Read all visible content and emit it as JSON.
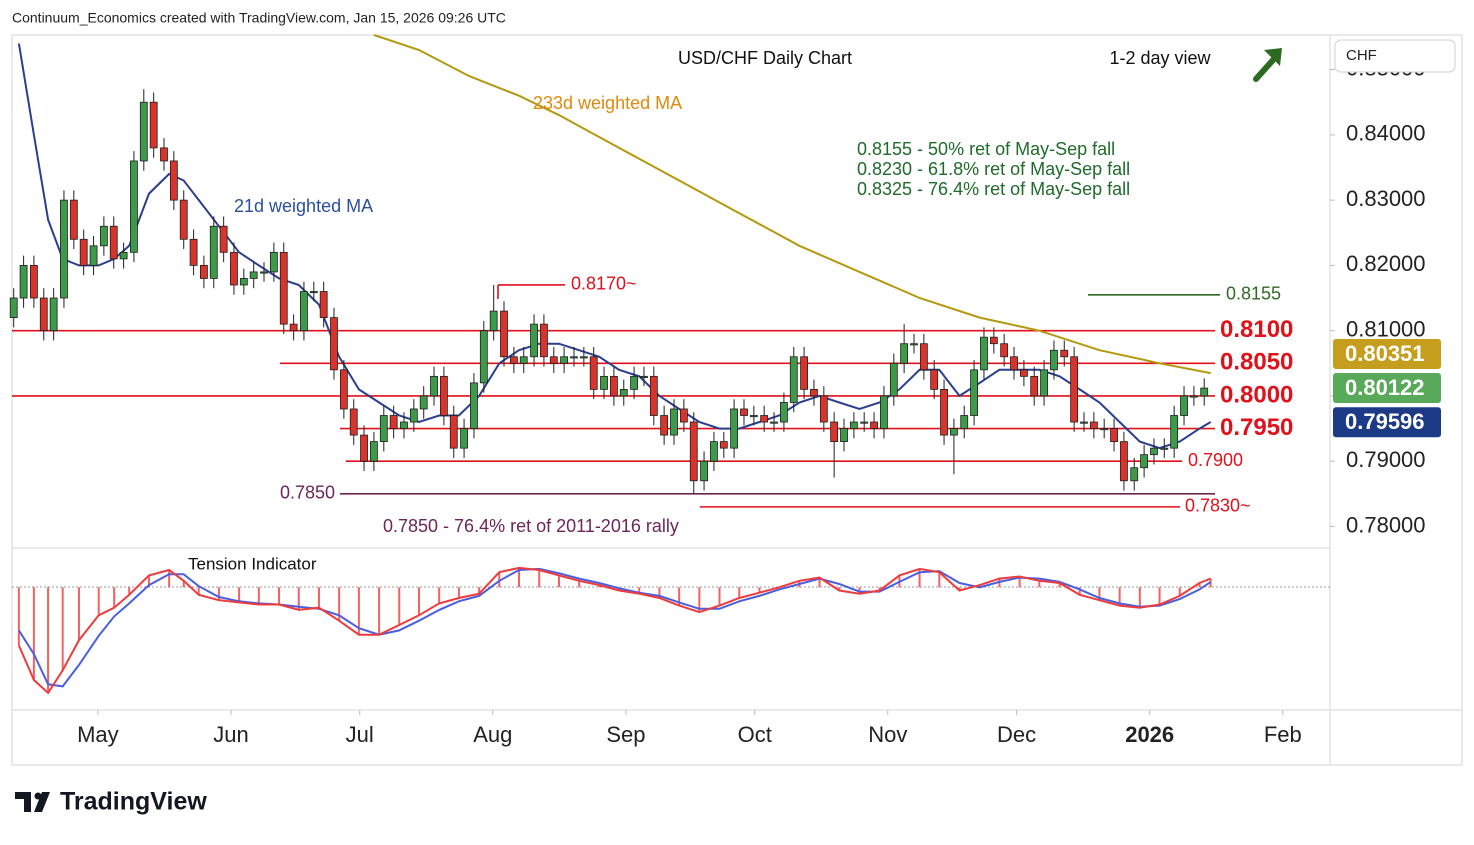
{
  "header": "Continuum_Economics created with TradingView.com, Jan 15, 2026 09:26 UTC",
  "logo": "TradingView",
  "chart_data": {
    "type": "candlestick",
    "title": "USD/CHF Daily Chart",
    "subtitle": "1-2 day view",
    "currency": "CHF",
    "up_color": "#3d9a48",
    "down_color": "#d9342b",
    "wick_color": "#1f1f1f",
    "xlim": [
      10,
      317
    ],
    "xticks": [
      {
        "value": 30,
        "label": "May"
      },
      {
        "value": 61,
        "label": "Jun"
      },
      {
        "value": 91,
        "label": "Jul"
      },
      {
        "value": 122,
        "label": "Aug"
      },
      {
        "value": 153,
        "label": "Sep"
      },
      {
        "value": 183,
        "label": "Oct"
      },
      {
        "value": 214,
        "label": "Nov"
      },
      {
        "value": 244,
        "label": "Dec"
      },
      {
        "value": 275,
        "label": "2026"
      },
      {
        "value": 306,
        "label": "Feb"
      }
    ],
    "ylim": [
      0.7767,
      0.8553
    ],
    "yticks": [
      {
        "value": 0.78,
        "label": "0.78000"
      },
      {
        "value": 0.79,
        "label": "0.79000"
      },
      {
        "value": 0.8,
        "label": "0.80000"
      },
      {
        "value": 0.81,
        "label": "0.81000"
      },
      {
        "value": 0.82,
        "label": "0.82000"
      },
      {
        "value": 0.83,
        "label": "0.83000"
      },
      {
        "value": 0.84,
        "label": "0.84000"
      },
      {
        "value": 0.85,
        "label": "0.85000"
      }
    ],
    "x": [
      10.4,
      12.7,
      15.1,
      17.4,
      19.7,
      22.1,
      24.4,
      26.7,
      29.0,
      31.4,
      33.7,
      36.0,
      38.4,
      40.7,
      43.0,
      45.4,
      47.7,
      50.0,
      52.3,
      54.7,
      57.0,
      59.3,
      61.7,
      64.0,
      66.3,
      68.7,
      71.0,
      73.3,
      75.6,
      78.0,
      80.3,
      82.6,
      85.0,
      87.3,
      89.6,
      92.0,
      94.3,
      96.6,
      98.9,
      101.3,
      103.6,
      105.9,
      108.3,
      110.6,
      112.9,
      115.3,
      117.6,
      119.9,
      122.2,
      124.6,
      126.9,
      129.2,
      131.6,
      133.9,
      136.2,
      138.6,
      140.9,
      143.2,
      145.5,
      147.9,
      150.2,
      152.5,
      154.9,
      157.2,
      159.5,
      161.9,
      164.2,
      166.5,
      168.8,
      171.2,
      173.5,
      175.8,
      178.2,
      180.5,
      182.8,
      185.2,
      187.5,
      189.8,
      192.1,
      194.5,
      196.8,
      199.1,
      201.5,
      203.8,
      206.1,
      208.5,
      210.8,
      213.1,
      215.4,
      217.8,
      220.1,
      222.4,
      224.8,
      227.1,
      229.4,
      231.8,
      234.1,
      236.4,
      238.7,
      241.1,
      243.4,
      245.7,
      248.1,
      250.4,
      252.7,
      255.1,
      257.4,
      259.7,
      262.0,
      264.4,
      266.7,
      269.0,
      271.4,
      273.7,
      276.0,
      278.4,
      280.7,
      283.0,
      285.3,
      287.7
    ],
    "ohlc": [
      [
        0.812,
        0.8165,
        0.8105,
        0.815
      ],
      [
        0.815,
        0.8215,
        0.8135,
        0.82
      ],
      [
        0.82,
        0.8215,
        0.8135,
        0.815
      ],
      [
        0.815,
        0.8165,
        0.8085,
        0.81
      ],
      [
        0.81,
        0.8165,
        0.8085,
        0.815
      ],
      [
        0.815,
        0.8315,
        0.8135,
        0.83
      ],
      [
        0.83,
        0.8315,
        0.8225,
        0.824
      ],
      [
        0.824,
        0.8255,
        0.8185,
        0.82
      ],
      [
        0.82,
        0.8245,
        0.8185,
        0.823
      ],
      [
        0.823,
        0.8275,
        0.8215,
        0.826
      ],
      [
        0.826,
        0.8275,
        0.8195,
        0.821
      ],
      [
        0.821,
        0.8235,
        0.8195,
        0.822
      ],
      [
        0.822,
        0.8375,
        0.8205,
        0.836
      ],
      [
        0.836,
        0.847,
        0.8345,
        0.845
      ],
      [
        0.845,
        0.8465,
        0.8365,
        0.838
      ],
      [
        0.838,
        0.8395,
        0.8345,
        0.836
      ],
      [
        0.836,
        0.8375,
        0.8285,
        0.83
      ],
      [
        0.83,
        0.8315,
        0.8225,
        0.824
      ],
      [
        0.824,
        0.8255,
        0.8185,
        0.82
      ],
      [
        0.82,
        0.8215,
        0.8165,
        0.818
      ],
      [
        0.818,
        0.8275,
        0.8165,
        0.826
      ],
      [
        0.826,
        0.8275,
        0.8205,
        0.822
      ],
      [
        0.822,
        0.8235,
        0.8155,
        0.817
      ],
      [
        0.817,
        0.8195,
        0.8155,
        0.818
      ],
      [
        0.818,
        0.8205,
        0.8165,
        0.819
      ],
      [
        0.819,
        0.8205,
        0.8175,
        0.819
      ],
      [
        0.819,
        0.8235,
        0.8175,
        0.822
      ],
      [
        0.822,
        0.8235,
        0.8095,
        0.811
      ],
      [
        0.811,
        0.8125,
        0.8085,
        0.81
      ],
      [
        0.81,
        0.8175,
        0.8085,
        0.816
      ],
      [
        0.816,
        0.8175,
        0.8145,
        0.816
      ],
      [
        0.816,
        0.8175,
        0.8105,
        0.812
      ],
      [
        0.812,
        0.8135,
        0.8025,
        0.804
      ],
      [
        0.804,
        0.8055,
        0.7965,
        0.798
      ],
      [
        0.798,
        0.7995,
        0.7925,
        0.794
      ],
      [
        0.794,
        0.7955,
        0.7885,
        0.79
      ],
      [
        0.79,
        0.7945,
        0.7885,
        0.793
      ],
      [
        0.793,
        0.7985,
        0.7915,
        0.797
      ],
      [
        0.797,
        0.7985,
        0.7935,
        0.795
      ],
      [
        0.795,
        0.7975,
        0.7935,
        0.796
      ],
      [
        0.796,
        0.7995,
        0.7945,
        0.798
      ],
      [
        0.798,
        0.8015,
        0.7965,
        0.8
      ],
      [
        0.8,
        0.8045,
        0.7985,
        0.803
      ],
      [
        0.803,
        0.8045,
        0.7955,
        0.797
      ],
      [
        0.797,
        0.7985,
        0.7905,
        0.792
      ],
      [
        0.792,
        0.7965,
        0.7905,
        0.795
      ],
      [
        0.795,
        0.8035,
        0.7935,
        0.802
      ],
      [
        0.802,
        0.8115,
        0.8005,
        0.81
      ],
      [
        0.81,
        0.817,
        0.8085,
        0.813
      ],
      [
        0.813,
        0.8145,
        0.8045,
        0.806
      ],
      [
        0.806,
        0.8075,
        0.8035,
        0.805
      ],
      [
        0.805,
        0.8075,
        0.8035,
        0.806
      ],
      [
        0.806,
        0.8125,
        0.8045,
        0.811
      ],
      [
        0.811,
        0.8125,
        0.8045,
        0.806
      ],
      [
        0.806,
        0.8075,
        0.8035,
        0.805
      ],
      [
        0.805,
        0.8075,
        0.8035,
        0.806
      ],
      [
        0.806,
        0.8075,
        0.8045,
        0.806
      ],
      [
        0.806,
        0.8075,
        0.8045,
        0.806
      ],
      [
        0.806,
        0.8075,
        0.7995,
        0.801
      ],
      [
        0.801,
        0.8045,
        0.7995,
        0.803
      ],
      [
        0.803,
        0.8045,
        0.7985,
        0.8
      ],
      [
        0.8,
        0.8025,
        0.7985,
        0.801
      ],
      [
        0.801,
        0.8045,
        0.7995,
        0.803
      ],
      [
        0.803,
        0.8045,
        0.8015,
        0.803
      ],
      [
        0.803,
        0.8045,
        0.7955,
        0.797
      ],
      [
        0.797,
        0.7985,
        0.7925,
        0.794
      ],
      [
        0.794,
        0.7995,
        0.7925,
        0.798
      ],
      [
        0.798,
        0.7995,
        0.7945,
        0.796
      ],
      [
        0.796,
        0.7975,
        0.785,
        0.787
      ],
      [
        0.787,
        0.7915,
        0.7855,
        0.79
      ],
      [
        0.79,
        0.7945,
        0.7885,
        0.793
      ],
      [
        0.793,
        0.7945,
        0.7905,
        0.792
      ],
      [
        0.792,
        0.7995,
        0.7905,
        0.798
      ],
      [
        0.798,
        0.7995,
        0.7955,
        0.797
      ],
      [
        0.797,
        0.7985,
        0.7955,
        0.797
      ],
      [
        0.797,
        0.7985,
        0.7945,
        0.796
      ],
      [
        0.796,
        0.7975,
        0.7945,
        0.796
      ],
      [
        0.796,
        0.8005,
        0.7945,
        0.799
      ],
      [
        0.799,
        0.8075,
        0.7975,
        0.806
      ],
      [
        0.806,
        0.8075,
        0.7995,
        0.801
      ],
      [
        0.801,
        0.8025,
        0.7985,
        0.8
      ],
      [
        0.8,
        0.8015,
        0.7945,
        0.796
      ],
      [
        0.796,
        0.7975,
        0.7875,
        0.793
      ],
      [
        0.793,
        0.7965,
        0.7915,
        0.795
      ],
      [
        0.795,
        0.7975,
        0.7935,
        0.796
      ],
      [
        0.796,
        0.7975,
        0.7945,
        0.796
      ],
      [
        0.796,
        0.7975,
        0.7935,
        0.795
      ],
      [
        0.795,
        0.8015,
        0.7935,
        0.8
      ],
      [
        0.8,
        0.8065,
        0.7985,
        0.805
      ],
      [
        0.805,
        0.811,
        0.8035,
        0.808
      ],
      [
        0.808,
        0.8095,
        0.8065,
        0.808
      ],
      [
        0.808,
        0.8095,
        0.8025,
        0.804
      ],
      [
        0.804,
        0.8055,
        0.7995,
        0.801
      ],
      [
        0.801,
        0.8025,
        0.7925,
        0.794
      ],
      [
        0.794,
        0.7965,
        0.788,
        0.795
      ],
      [
        0.795,
        0.7985,
        0.7935,
        0.797
      ],
      [
        0.797,
        0.8055,
        0.7955,
        0.804
      ],
      [
        0.804,
        0.8105,
        0.8025,
        0.809
      ],
      [
        0.809,
        0.8105,
        0.8065,
        0.808
      ],
      [
        0.808,
        0.8095,
        0.8045,
        0.806
      ],
      [
        0.806,
        0.8075,
        0.8025,
        0.804
      ],
      [
        0.804,
        0.8055,
        0.8015,
        0.803
      ],
      [
        0.803,
        0.8045,
        0.7985,
        0.8
      ],
      [
        0.8,
        0.8055,
        0.7985,
        0.804
      ],
      [
        0.804,
        0.8085,
        0.8025,
        0.807
      ],
      [
        0.807,
        0.8085,
        0.8045,
        0.806
      ],
      [
        0.806,
        0.8075,
        0.7945,
        0.796
      ],
      [
        0.796,
        0.7975,
        0.7945,
        0.796
      ],
      [
        0.796,
        0.7975,
        0.7935,
        0.795
      ],
      [
        0.795,
        0.7965,
        0.7935,
        0.795
      ],
      [
        0.795,
        0.7965,
        0.7915,
        0.793
      ],
      [
        0.793,
        0.7945,
        0.7855,
        0.787
      ],
      [
        0.787,
        0.7905,
        0.7855,
        0.789
      ],
      [
        0.789,
        0.7925,
        0.7875,
        0.791
      ],
      [
        0.791,
        0.7935,
        0.7895,
        0.792
      ],
      [
        0.792,
        0.7935,
        0.7905,
        0.792
      ],
      [
        0.792,
        0.7985,
        0.7905,
        0.797
      ],
      [
        0.797,
        0.8015,
        0.7955,
        0.8
      ],
      [
        0.8,
        0.8015,
        0.7985,
        0.8
      ],
      [
        0.8,
        0.8027,
        0.7985,
        0.8012
      ]
    ],
    "moving_averages": [
      {
        "name": "233d weighted MA",
        "color": "#b5980f",
        "label_color": "#e08a0c",
        "x": [
          94.3,
          104.8,
          116.5,
          128.1,
          137.5,
          151.4,
          165.4,
          179.4,
          193.4,
          207.4,
          221.4,
          235.4,
          249.3,
          263.3,
          277.3,
          289.2
        ],
        "values": [
          0.8553,
          0.853,
          0.849,
          0.846,
          0.843,
          0.838,
          0.833,
          0.828,
          0.823,
          0.819,
          0.815,
          0.812,
          0.81,
          0.807,
          0.805,
          0.8035
        ]
      },
      {
        "name": "21d weighted MA",
        "color": "#2a3f8f",
        "label_color": "#2b4fa0",
        "x": [
          11.6,
          15.1,
          18.4,
          21.8,
          25.6,
          30.2,
          33.8,
          37.3,
          41.9,
          46.6,
          50.0,
          53.5,
          58.2,
          62.9,
          67.5,
          72.2,
          76.8,
          81.5,
          86.2,
          90.8,
          95.5,
          100.2,
          104.8,
          109.5,
          114.1,
          118.8,
          123.5,
          128.1,
          132.8,
          137.4,
          142.1,
          146.8,
          151.4,
          156.1,
          160.8,
          165.4,
          170.1,
          174.8,
          179.4,
          184.1,
          188.7,
          193.4,
          198.1,
          202.7,
          207.4,
          212.1,
          216.7,
          221.4,
          226.0,
          230.7,
          235.4,
          240.0,
          244.7,
          249.3,
          254.0,
          258.7,
          263.3,
          268.0,
          272.7,
          277.3,
          282.0,
          286.6,
          289.2
        ],
        "values": [
          0.854,
          0.84,
          0.827,
          0.821,
          0.82,
          0.82,
          0.821,
          0.823,
          0.831,
          0.834,
          0.833,
          0.83,
          0.826,
          0.822,
          0.82,
          0.818,
          0.817,
          0.814,
          0.806,
          0.801,
          0.799,
          0.797,
          0.796,
          0.797,
          0.797,
          0.8,
          0.805,
          0.807,
          0.808,
          0.808,
          0.807,
          0.806,
          0.804,
          0.803,
          0.8,
          0.798,
          0.796,
          0.795,
          0.795,
          0.796,
          0.797,
          0.799,
          0.8,
          0.799,
          0.798,
          0.799,
          0.801,
          0.804,
          0.804,
          0.8,
          0.802,
          0.804,
          0.804,
          0.804,
          0.803,
          0.801,
          0.799,
          0.796,
          0.793,
          0.792,
          0.793,
          0.795,
          0.796
        ]
      }
    ],
    "levels": [
      {
        "value": 0.817,
        "label": "0.8170~",
        "color": "#e0111b"
      },
      {
        "value": 0.8155,
        "label": "0.8155",
        "color": "#2e6b22"
      },
      {
        "value": 0.81,
        "label": "0.8100",
        "color": "#e0111b"
      },
      {
        "value": 0.805,
        "label": "0.8050",
        "color": "#e0111b"
      },
      {
        "value": 0.8,
        "label": "0.8000",
        "color": "#e0111b"
      },
      {
        "value": 0.795,
        "label": "0.7950",
        "color": "#e0111b"
      },
      {
        "value": 0.79,
        "label": "0.7900",
        "color": "#e0111b"
      },
      {
        "value": 0.785,
        "label": "0.7850",
        "color": "#6e2558"
      },
      {
        "value": 0.783,
        "label": "0.7830~",
        "color": "#e0111b"
      }
    ],
    "notes": [
      "0.8155 - 50% ret of May-Sep fall",
      "0.8230 - 61.8% ret of May-Sep fall",
      "0.8325 - 76.4% ret of May-Sep fall"
    ],
    "notes_color": "#1e6b2a",
    "level_note": "0.7850 - 76.4% ret of 2011-2016 rally",
    "level_note_color": "#6e2558",
    "price_badges": [
      {
        "value": 0.80351,
        "color": "#c49e1c"
      },
      {
        "value": 0.80122,
        "color": "#58aa5a"
      },
      {
        "value": 0.79596,
        "color": "#1d3a86"
      }
    ],
    "indicator": {
      "name": "Tension Indicator",
      "ylim": [
        -1.12,
        0.29
      ],
      "line_color": "#ef3b3b",
      "signal_color": "#4a5fe0",
      "x": [
        11.6,
        15.1,
        18.4,
        21.8,
        25.6,
        30.2,
        33.8,
        37.3,
        41.9,
        46.6,
        50.0,
        53.5,
        58.2,
        62.9,
        67.5,
        72.2,
        76.8,
        81.5,
        86.2,
        90.8,
        95.5,
        100.2,
        104.8,
        109.5,
        114.1,
        118.8,
        123.5,
        128.1,
        132.8,
        137.4,
        142.1,
        146.8,
        151.4,
        156.1,
        160.8,
        165.4,
        170.1,
        174.8,
        179.4,
        184.1,
        188.7,
        193.4,
        198.1,
        202.7,
        207.4,
        212.1,
        216.7,
        221.4,
        226.0,
        230.7,
        235.4,
        240.0,
        244.7,
        249.3,
        254.0,
        258.7,
        263.3,
        268.0,
        272.7,
        277.3,
        282.0,
        286.6,
        289.2
      ],
      "line": [
        -0.54,
        -0.86,
        -0.98,
        -0.77,
        -0.49,
        -0.26,
        -0.19,
        -0.07,
        0.11,
        0.16,
        0.06,
        -0.07,
        -0.12,
        -0.14,
        -0.16,
        -0.16,
        -0.21,
        -0.19,
        -0.31,
        -0.44,
        -0.44,
        -0.35,
        -0.26,
        -0.15,
        -0.1,
        -0.06,
        0.14,
        0.18,
        0.16,
        0.11,
        0.06,
        0.02,
        -0.03,
        -0.06,
        -0.1,
        -0.17,
        -0.23,
        -0.17,
        -0.1,
        -0.05,
        0,
        0.06,
        0.09,
        -0.03,
        -0.06,
        -0.03,
        0.11,
        0.17,
        0.14,
        -0.03,
        0.02,
        0.08,
        0.1,
        0.06,
        0.04,
        -0.07,
        -0.12,
        -0.17,
        -0.19,
        -0.16,
        -0.08,
        0.04,
        0.08
      ],
      "signal": [
        -0.4,
        -0.62,
        -0.9,
        -0.92,
        -0.72,
        -0.45,
        -0.27,
        -0.15,
        0.02,
        0.12,
        0.12,
        0.01,
        -0.09,
        -0.13,
        -0.15,
        -0.16,
        -0.18,
        -0.2,
        -0.26,
        -0.38,
        -0.44,
        -0.4,
        -0.31,
        -0.21,
        -0.13,
        -0.08,
        0.06,
        0.16,
        0.17,
        0.13,
        0.08,
        0.04,
        -0.01,
        -0.05,
        -0.08,
        -0.14,
        -0.2,
        -0.2,
        -0.13,
        -0.08,
        -0.02,
        0.03,
        0.08,
        0.03,
        -0.04,
        -0.04,
        0.05,
        0.14,
        0.15,
        0.04,
        0.0,
        0.05,
        0.09,
        0.08,
        0.05,
        -0.02,
        -0.1,
        -0.15,
        -0.18,
        -0.17,
        -0.11,
        -0.02,
        0.05
      ]
    }
  }
}
